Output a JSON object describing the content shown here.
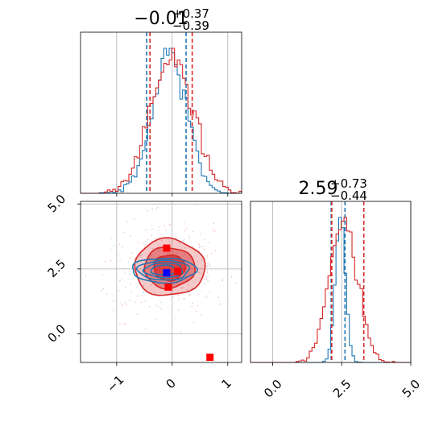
{
  "colors": {
    "blue": "#1f77b4",
    "red": "#d62728",
    "marker_blue": "#0000ff",
    "marker_red": "#ff0000"
  },
  "chart_data": [
    {
      "panel": "top-left",
      "type": "histogram",
      "title": {
        "value": "−0.01",
        "plus": "+0.37",
        "minus": "−0.39"
      },
      "xlim": [
        -1.65,
        1.25
      ],
      "grid": true,
      "series": [
        {
          "name": "",
          "color": "#1f77b4",
          "kind": "step",
          "center": -0.05,
          "sd": 0.31,
          "quantiles": [
            -0.46,
            0.25
          ]
        },
        {
          "name": "",
          "color": "#d62728",
          "kind": "step",
          "center": -0.01,
          "sd": 0.38,
          "quantiles": [
            -0.4,
            0.36
          ]
        }
      ]
    },
    {
      "panel": "bottom-left",
      "type": "contour",
      "xlim": [
        -1.65,
        1.25
      ],
      "ylim": [
        -1.1,
        5.1
      ],
      "x_ticks": [
        "−1",
        "0",
        "1"
      ],
      "x_tick_values": [
        -1,
        0,
        1
      ],
      "y_ticks": [
        "0.0",
        "2.5",
        "5.0"
      ],
      "y_tick_values": [
        0,
        2.5,
        5.0
      ],
      "grid": true,
      "series": [
        {
          "name": "",
          "color": "#d62728",
          "kind": "filled-contour",
          "center": [
            -0.05,
            2.55
          ],
          "spread": [
            0.55,
            0.95
          ]
        },
        {
          "name": "",
          "color": "#1f77b4",
          "kind": "line-contour",
          "center": [
            -0.15,
            2.45
          ],
          "spread": [
            0.55,
            0.45
          ]
        }
      ],
      "points": [
        {
          "x": -0.1,
          "y": 3.3,
          "color": "#ff0000"
        },
        {
          "x": 0.1,
          "y": 2.4,
          "color": "#ff0000"
        },
        {
          "x": -0.07,
          "y": 1.8,
          "color": "#ff0000"
        },
        {
          "x": -0.1,
          "y": 2.35,
          "color": "#0000ff"
        },
        {
          "x": 0.68,
          "y": -0.9,
          "color": "#ff0000"
        }
      ]
    },
    {
      "panel": "bottom-right",
      "type": "histogram",
      "title": {
        "value": "2.59",
        "plus": "+0.73",
        "minus": "−0.44"
      },
      "xlim": [
        -0.8,
        5.0
      ],
      "x_ticks": [
        "0.0",
        "2.5",
        "5.0"
      ],
      "x_tick_values": [
        0,
        2.5,
        5.0
      ],
      "grid": true,
      "series": [
        {
          "name": "",
          "color": "#1f77b4",
          "kind": "step",
          "center": 2.45,
          "sd": 0.18,
          "quantiles": [
            2.12,
            2.62
          ]
        },
        {
          "name": "",
          "color": "#d62728",
          "kind": "step",
          "center": 2.55,
          "sd": 0.5,
          "quantiles": [
            2.14,
            3.3
          ]
        }
      ]
    }
  ]
}
